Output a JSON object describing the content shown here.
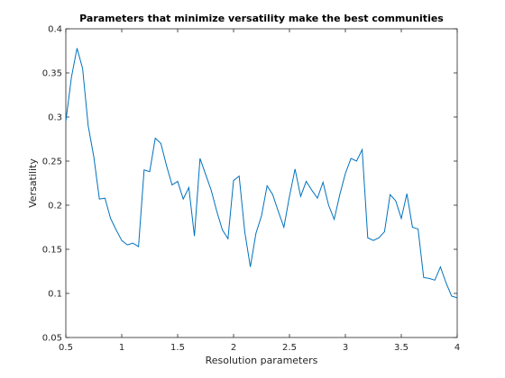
{
  "chart_data": {
    "type": "line",
    "title": "Parameters that minimize versatility make the best communities",
    "xlabel": "Resolution parameters",
    "ylabel": "Versatility",
    "xlim": [
      0.5,
      4
    ],
    "ylim": [
      0.05,
      0.4
    ],
    "xticks": [
      0.5,
      1,
      1.5,
      2,
      2.5,
      3,
      3.5,
      4
    ],
    "yticks": [
      0.05,
      0.1,
      0.15,
      0.2,
      0.25,
      0.3,
      0.35,
      0.4
    ],
    "xtick_labels": [
      "0.5",
      "1",
      "1.5",
      "2",
      "2.5",
      "3",
      "3.5",
      "4"
    ],
    "ytick_labels": [
      "0.05",
      "0.1",
      "0.15",
      "0.2",
      "0.25",
      "0.3",
      "0.35",
      "0.4"
    ],
    "grid": false,
    "series": [
      {
        "color": "#0072bd",
        "x": [
          0.5,
          0.55,
          0.6,
          0.65,
          0.7,
          0.75,
          0.8,
          0.85,
          0.9,
          0.95,
          1.0,
          1.05,
          1.1,
          1.15,
          1.2,
          1.25,
          1.3,
          1.35,
          1.4,
          1.45,
          1.5,
          1.55,
          1.6,
          1.65,
          1.7,
          1.75,
          1.8,
          1.85,
          1.9,
          1.95,
          2.0,
          2.05,
          2.1,
          2.15,
          2.2,
          2.25,
          2.3,
          2.35,
          2.4,
          2.45,
          2.5,
          2.55,
          2.6,
          2.65,
          2.7,
          2.75,
          2.8,
          2.85,
          2.9,
          2.95,
          3.0,
          3.05,
          3.1,
          3.15,
          3.2,
          3.25,
          3.3,
          3.35,
          3.4,
          3.45,
          3.5,
          3.55,
          3.6,
          3.65,
          3.7,
          3.75,
          3.8,
          3.85,
          3.9,
          3.95,
          4.0
        ],
        "y": [
          0.295,
          0.345,
          0.378,
          0.355,
          0.29,
          0.255,
          0.207,
          0.208,
          0.185,
          0.172,
          0.16,
          0.155,
          0.157,
          0.153,
          0.24,
          0.238,
          0.276,
          0.27,
          0.245,
          0.223,
          0.227,
          0.207,
          0.22,
          0.165,
          0.253,
          0.235,
          0.217,
          0.193,
          0.172,
          0.162,
          0.228,
          0.233,
          0.17,
          0.13,
          0.168,
          0.188,
          0.222,
          0.212,
          0.193,
          0.175,
          0.21,
          0.241,
          0.21,
          0.227,
          0.217,
          0.208,
          0.226,
          0.2,
          0.184,
          0.212,
          0.236,
          0.253,
          0.25,
          0.263,
          0.163,
          0.16,
          0.163,
          0.17,
          0.212,
          0.205,
          0.185,
          0.213,
          0.175,
          0.173,
          0.118,
          0.117,
          0.115,
          0.13,
          0.112,
          0.097,
          0.095
        ]
      }
    ]
  }
}
